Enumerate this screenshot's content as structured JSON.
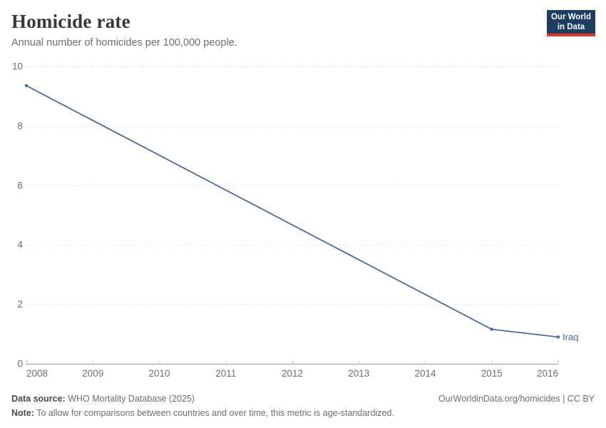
{
  "header": {
    "title": "Homicide rate",
    "subtitle": "Annual number of homicides per 100,000 people.",
    "logo": {
      "line1": "Our World",
      "line2": "in Data"
    }
  },
  "chart_data": {
    "type": "line",
    "title": "Homicide rate",
    "subtitle": "Annual number of homicides per 100,000 people.",
    "xlim": [
      2008,
      2016
    ],
    "ylim": [
      0,
      10
    ],
    "x_ticks": [
      2008,
      2009,
      2010,
      2011,
      2012,
      2013,
      2014,
      2015,
      2016
    ],
    "y_ticks": [
      0,
      2,
      4,
      6,
      8,
      10
    ],
    "grid": "horizontal-dashed",
    "legend": "end-of-line-label",
    "xlabel": "",
    "ylabel": "",
    "series": [
      {
        "name": "Iraq",
        "end_label": "Iraq",
        "x": [
          2008,
          2015,
          2016
        ],
        "values": [
          9.35,
          1.16,
          0.9
        ]
      }
    ]
  },
  "footer": {
    "datasource_label": "Data source:",
    "datasource_value": " WHO Mortality Database (2025)",
    "url_text": "OurWorldinData.org/homicides | CC BY",
    "note_label": "Note:",
    "note_value": " To allow for comparisons between countries and over time, this metric is age-standardized."
  },
  "colors": {
    "series_blue": "#4c6a9f",
    "logo_bg": "#1d3d63",
    "logo_accent": "#e0392b",
    "gridline": "#e2e2e2",
    "axis_line": "#9e9e9e",
    "axis_tick": "#c4c4c4",
    "axis_text": "#68707a"
  }
}
